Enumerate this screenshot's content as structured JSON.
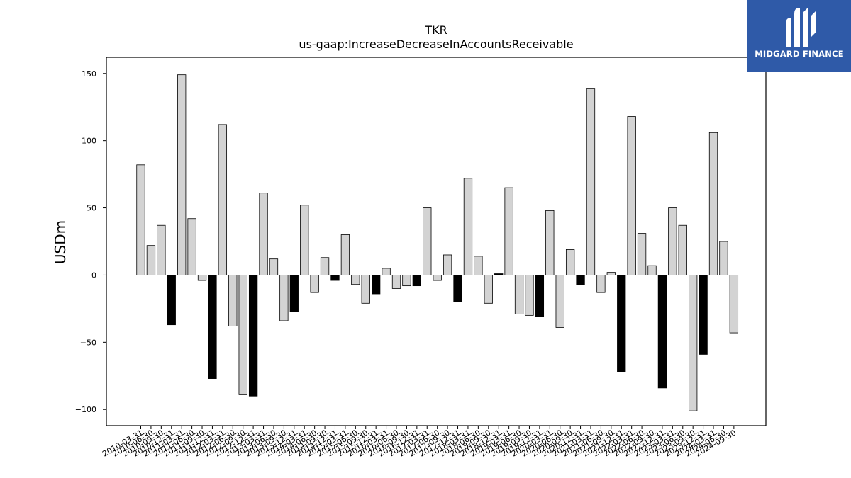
{
  "chart_data": {
    "type": "bar",
    "title": "TKR",
    "subtitle": "us-gaap:IncreaseDecreaseInAccountsReceivable",
    "xlabel": "",
    "ylabel": "USDm",
    "ylim": [
      -112,
      162
    ],
    "yticks": [
      150,
      100,
      50,
      0,
      -50,
      -100
    ],
    "ytick_labels": [
      "150",
      "100",
      "50",
      "0",
      "−50",
      "−100"
    ],
    "grid": false,
    "colors": {
      "annual_bar": "#000000",
      "quarter_bar": "#d3d3d3",
      "edge": "#000000"
    },
    "categories": [
      "2010-03-31",
      "2010-06-30",
      "2010-09-30",
      "2010-12-31",
      "2011-03-31",
      "2011-06-30",
      "2011-09-30",
      "2011-12-31",
      "2012-03-31",
      "2012-06-30",
      "2012-09-30",
      "2012-12-31",
      "2013-03-31",
      "2013-06-30",
      "2013-09-30",
      "2013-12-31",
      "2014-03-31",
      "2014-06-30",
      "2014-09-30",
      "2014-12-31",
      "2015-03-31",
      "2015-06-30",
      "2015-09-30",
      "2015-12-31",
      "2016-03-31",
      "2016-06-30",
      "2016-09-30",
      "2016-12-31",
      "2017-03-31",
      "2017-06-30",
      "2017-09-30",
      "2017-12-31",
      "2018-03-31",
      "2018-06-30",
      "2018-09-30",
      "2018-12-31",
      "2019-03-31",
      "2019-06-30",
      "2019-09-30",
      "2019-12-31",
      "2020-03-31",
      "2020-06-30",
      "2020-09-30",
      "2020-12-31",
      "2021-03-31",
      "2021-06-30",
      "2021-09-30",
      "2021-12-31",
      "2022-03-31",
      "2022-06-30",
      "2022-09-30",
      "2022-12-31",
      "2023-03-31",
      "2023-06-30",
      "2023-09-30",
      "2023-12-31",
      "2024-03-31",
      "2024-06-30",
      "2024-09-30"
    ],
    "values": [
      82,
      22,
      37,
      -37,
      149,
      42,
      -4,
      -77,
      112,
      -38,
      -89,
      -90,
      61,
      12,
      -34,
      -27,
      52,
      -13,
      13,
      -4,
      30,
      -7,
      -21,
      -14,
      5,
      -10,
      -8,
      -8,
      50,
      -4,
      15,
      -20,
      72,
      14,
      -21,
      1,
      65,
      -29,
      -30,
      -31,
      48,
      -39,
      19,
      -7,
      139,
      -13,
      2,
      -72,
      118,
      31,
      7,
      -84,
      50,
      37,
      -101,
      -59,
      106,
      25,
      -43
    ],
    "is_annual": [
      false,
      false,
      false,
      true,
      false,
      false,
      false,
      true,
      false,
      false,
      false,
      true,
      false,
      false,
      false,
      true,
      false,
      false,
      false,
      true,
      false,
      false,
      false,
      true,
      false,
      false,
      false,
      true,
      false,
      false,
      false,
      true,
      false,
      false,
      false,
      true,
      false,
      false,
      false,
      true,
      false,
      false,
      false,
      true,
      false,
      false,
      false,
      true,
      false,
      false,
      false,
      true,
      false,
      false,
      false,
      true,
      false,
      false,
      false
    ]
  },
  "logo": {
    "text": "MIDGARD FINANCE",
    "color": "#2f5aa8"
  }
}
